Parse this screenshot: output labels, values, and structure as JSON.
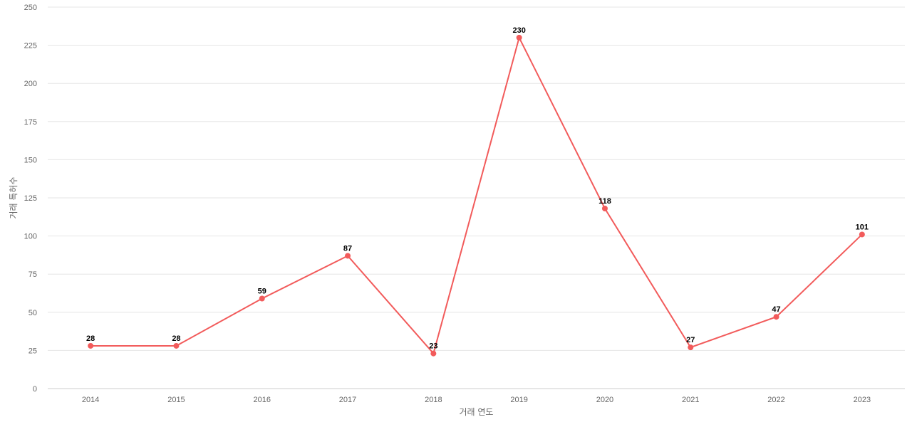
{
  "chart_data": {
    "type": "line",
    "title": "",
    "xlabel": "거래 연도",
    "ylabel": "거래 특허수",
    "categories": [
      "2014",
      "2015",
      "2016",
      "2017",
      "2018",
      "2019",
      "2020",
      "2021",
      "2022",
      "2023"
    ],
    "series": [
      {
        "values": [
          28,
          28,
          59,
          87,
          23,
          230,
          118,
          27,
          47,
          101
        ],
        "color": "#f25b5b"
      }
    ],
    "ylim": [
      0,
      250
    ],
    "yticks": [
      0,
      25,
      50,
      75,
      100,
      125,
      150,
      175,
      200,
      225,
      250
    ],
    "grid": true,
    "legend": "none",
    "data_labels": true
  }
}
